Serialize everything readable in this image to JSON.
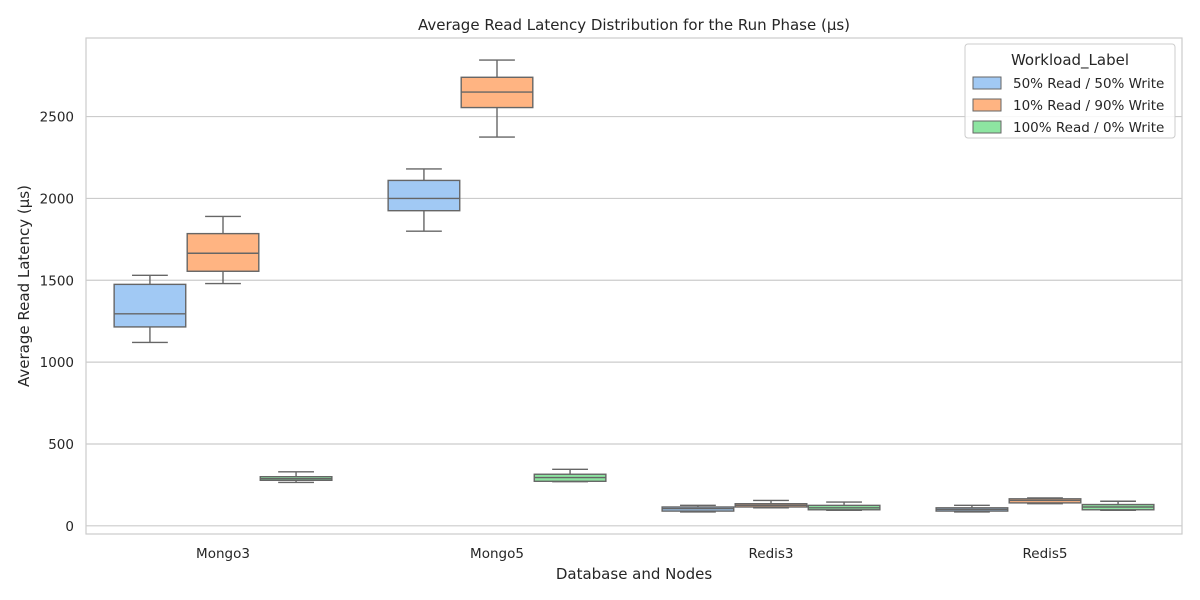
{
  "chart_data": {
    "type": "box",
    "title": "Average Read Latency Distribution for the Run Phase (μs)",
    "xlabel": "Database and Nodes",
    "ylabel": "Average Read Latency (μs)",
    "ylim": [
      -50,
      2980
    ],
    "yticks": [
      0,
      500,
      1000,
      1500,
      2000,
      2500
    ],
    "categories": [
      "Mongo3",
      "Mongo5",
      "Redis3",
      "Redis5"
    ],
    "grid": true,
    "legend": {
      "title": "Workload_Label",
      "placement": "top-right"
    },
    "series": [
      {
        "name": "50% Read / 50% Write",
        "color": "#a1c9f4",
        "boxes": [
          {
            "min": 1120,
            "q1": 1215,
            "median": 1295,
            "q3": 1475,
            "max": 1530
          },
          {
            "min": 1800,
            "q1": 1925,
            "median": 2000,
            "q3": 2110,
            "max": 2180
          },
          {
            "min": 85,
            "q1": 90,
            "median": 105,
            "q3": 115,
            "max": 125
          },
          {
            "min": 85,
            "q1": 90,
            "median": 100,
            "q3": 110,
            "max": 125
          }
        ]
      },
      {
        "name": "10% Read / 90% Write",
        "color": "#ffb482",
        "boxes": [
          {
            "min": 1480,
            "q1": 1555,
            "median": 1665,
            "q3": 1785,
            "max": 1890
          },
          {
            "min": 2375,
            "q1": 2555,
            "median": 2650,
            "q3": 2740,
            "max": 2845
          },
          {
            "min": 110,
            "q1": 115,
            "median": 125,
            "q3": 135,
            "max": 155
          },
          {
            "min": 135,
            "q1": 140,
            "median": 155,
            "q3": 165,
            "max": 170
          }
        ]
      },
      {
        "name": "100% Read / 0% Write",
        "color": "#8de5a1",
        "boxes": [
          {
            "min": 265,
            "q1": 278,
            "median": 288,
            "q3": 300,
            "max": 330
          },
          {
            "min": 270,
            "q1": 272,
            "median": 295,
            "q3": 315,
            "max": 345
          },
          {
            "min": 95,
            "q1": 98,
            "median": 110,
            "q3": 125,
            "max": 145
          },
          {
            "min": 95,
            "q1": 98,
            "median": 115,
            "q3": 130,
            "max": 150
          }
        ]
      }
    ]
  }
}
